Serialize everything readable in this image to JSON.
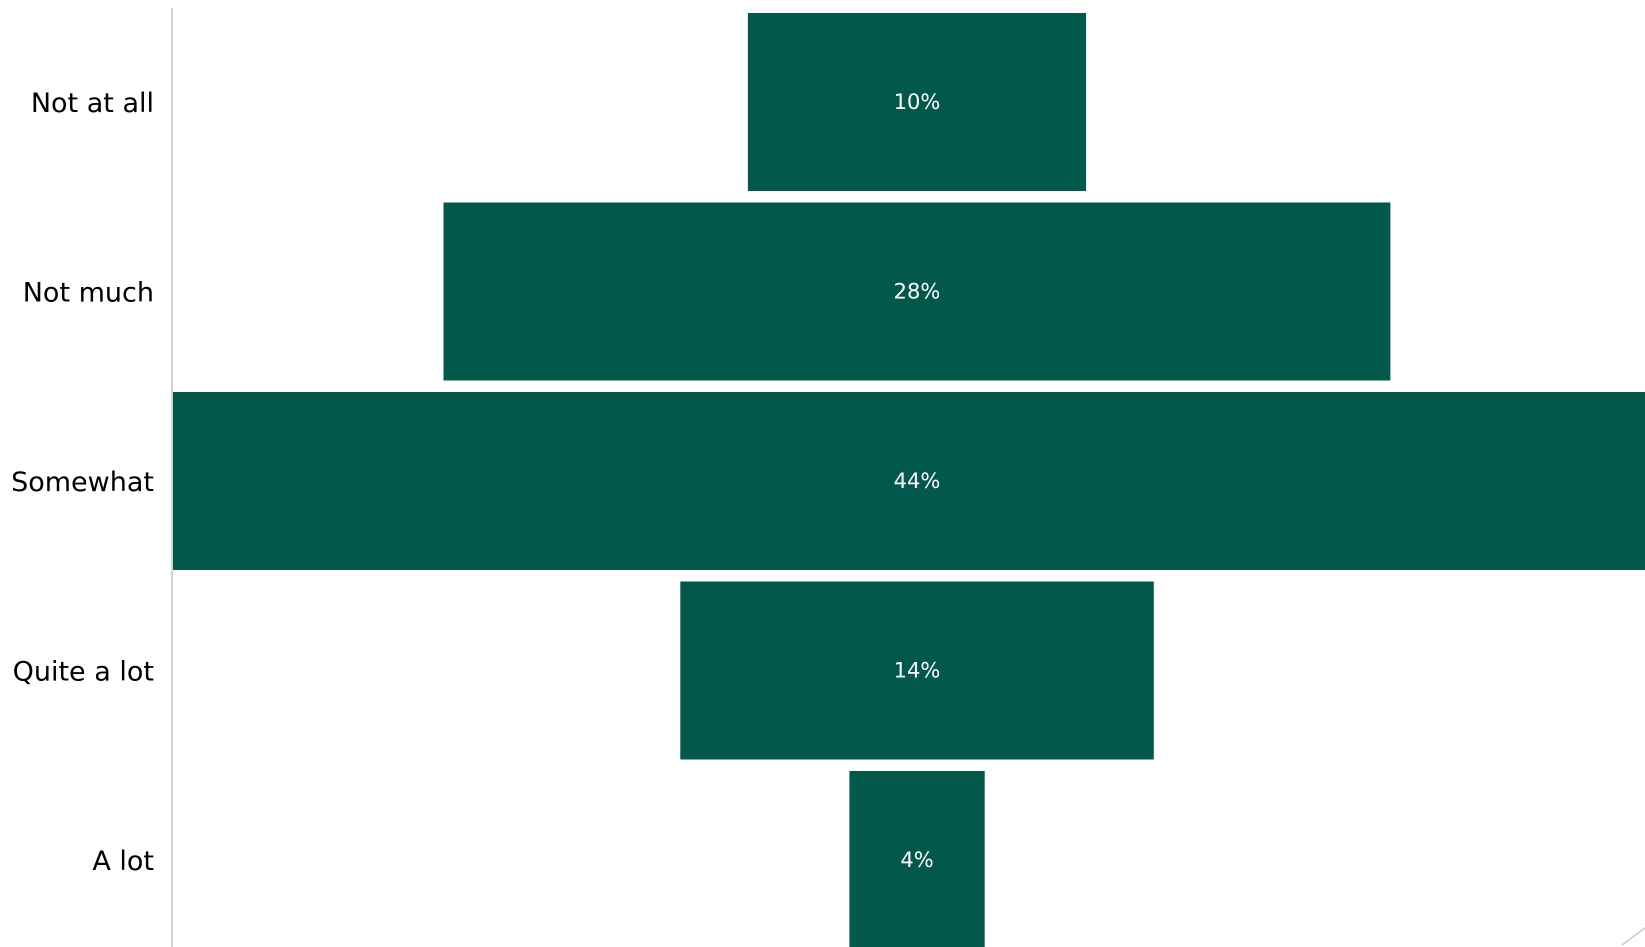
{
  "chart_data": {
    "type": "bar",
    "orientation": "horizontal",
    "layout": "centered-funnel",
    "categories": [
      "Not at all",
      "Not much",
      "Somewhat",
      "Quite a lot",
      "A lot"
    ],
    "values": [
      10,
      28,
      44,
      14,
      4
    ],
    "value_labels": [
      "10%",
      "28%",
      "44%",
      "14%",
      "4%"
    ],
    "unit": "%",
    "title": "",
    "xlabel": "",
    "ylabel": "",
    "grid": false,
    "legend": "none"
  },
  "colors": {
    "bar": "#02584A",
    "value_text": "#ffffff",
    "category_text": "#000000",
    "axis_line": "#d4d4d4",
    "background": "#ffffff"
  }
}
